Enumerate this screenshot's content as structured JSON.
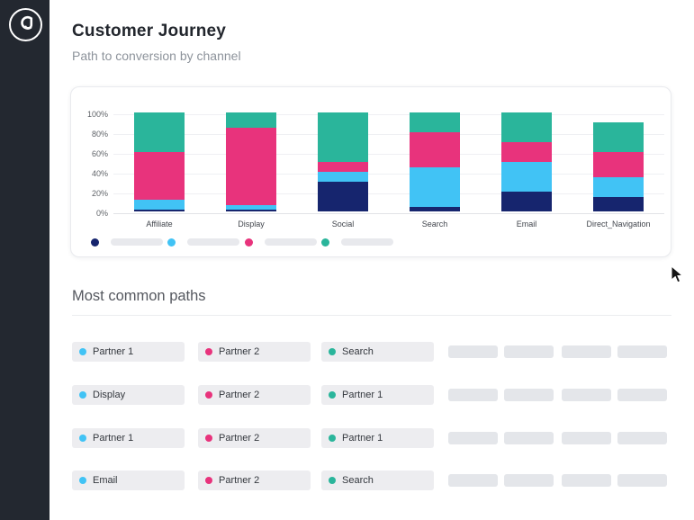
{
  "sidebar": {
    "logo": "cj-monogram"
  },
  "header": {
    "title": "Customer Journey",
    "subtitle": "Path to conversion by channel"
  },
  "chart_data": {
    "type": "bar",
    "stacked": true,
    "title": "Path to conversion by channel",
    "categories": [
      "Affiliate",
      "Display",
      "Social",
      "Search",
      "Email",
      "Direct_Navigation"
    ],
    "series": [
      {
        "name": "navy-segment",
        "color": "#16256e",
        "values": [
          2,
          2,
          30,
          5,
          20,
          15
        ]
      },
      {
        "name": "light-blue-segment",
        "color": "#41c3f5",
        "values": [
          10,
          4,
          10,
          40,
          30,
          20
        ]
      },
      {
        "name": "pink-segment",
        "color": "#e8337c",
        "values": [
          48,
          79,
          10,
          35,
          20,
          25
        ]
      },
      {
        "name": "teal-segment",
        "color": "#2ab59b",
        "values": [
          40,
          15,
          50,
          20,
          30,
          30
        ]
      }
    ],
    "y_ticks": [
      "100%",
      "80%",
      "60%",
      "40%",
      "20%",
      "0%"
    ],
    "ylim": [
      0,
      100
    ],
    "grid": true,
    "legend_position": "bottom",
    "legend_labels_visible": false
  },
  "legend": {
    "items": [
      {
        "color": "#16256e",
        "label": ""
      },
      {
        "color": "#41c3f5",
        "label": ""
      },
      {
        "color": "#e8337c",
        "label": ""
      },
      {
        "color": "#2ab59b",
        "label": ""
      }
    ]
  },
  "paths": {
    "title": "Most common paths",
    "rows": [
      {
        "steps": [
          {
            "label": "Partner 1",
            "color": "#41c3f5"
          },
          {
            "label": "Partner 2",
            "color": "#e8337c"
          },
          {
            "label": "Search",
            "color": "#2ab59b"
          }
        ],
        "placeholder_count": 4
      },
      {
        "steps": [
          {
            "label": "Display",
            "color": "#41c3f5"
          },
          {
            "label": "Partner 2",
            "color": "#e8337c"
          },
          {
            "label": "Partner 1",
            "color": "#2ab59b"
          }
        ],
        "placeholder_count": 4
      },
      {
        "steps": [
          {
            "label": "Partner 1",
            "color": "#41c3f5"
          },
          {
            "label": "Partner 2",
            "color": "#e8337c"
          },
          {
            "label": "Partner 1",
            "color": "#2ab59b"
          }
        ],
        "placeholder_count": 4
      },
      {
        "steps": [
          {
            "label": "Email",
            "color": "#41c3f5"
          },
          {
            "label": "Partner 2",
            "color": "#e8337c"
          },
          {
            "label": "Search",
            "color": "#2ab59b"
          }
        ],
        "placeholder_count": 4
      }
    ]
  },
  "colors": {
    "sidebar_bg": "#232830",
    "chip_bg": "#ededf0",
    "placeholder_bg": "#e4e6ea",
    "navy": "#16256e",
    "blue": "#41c3f5",
    "pink": "#e8337c",
    "teal": "#2ab59b"
  }
}
